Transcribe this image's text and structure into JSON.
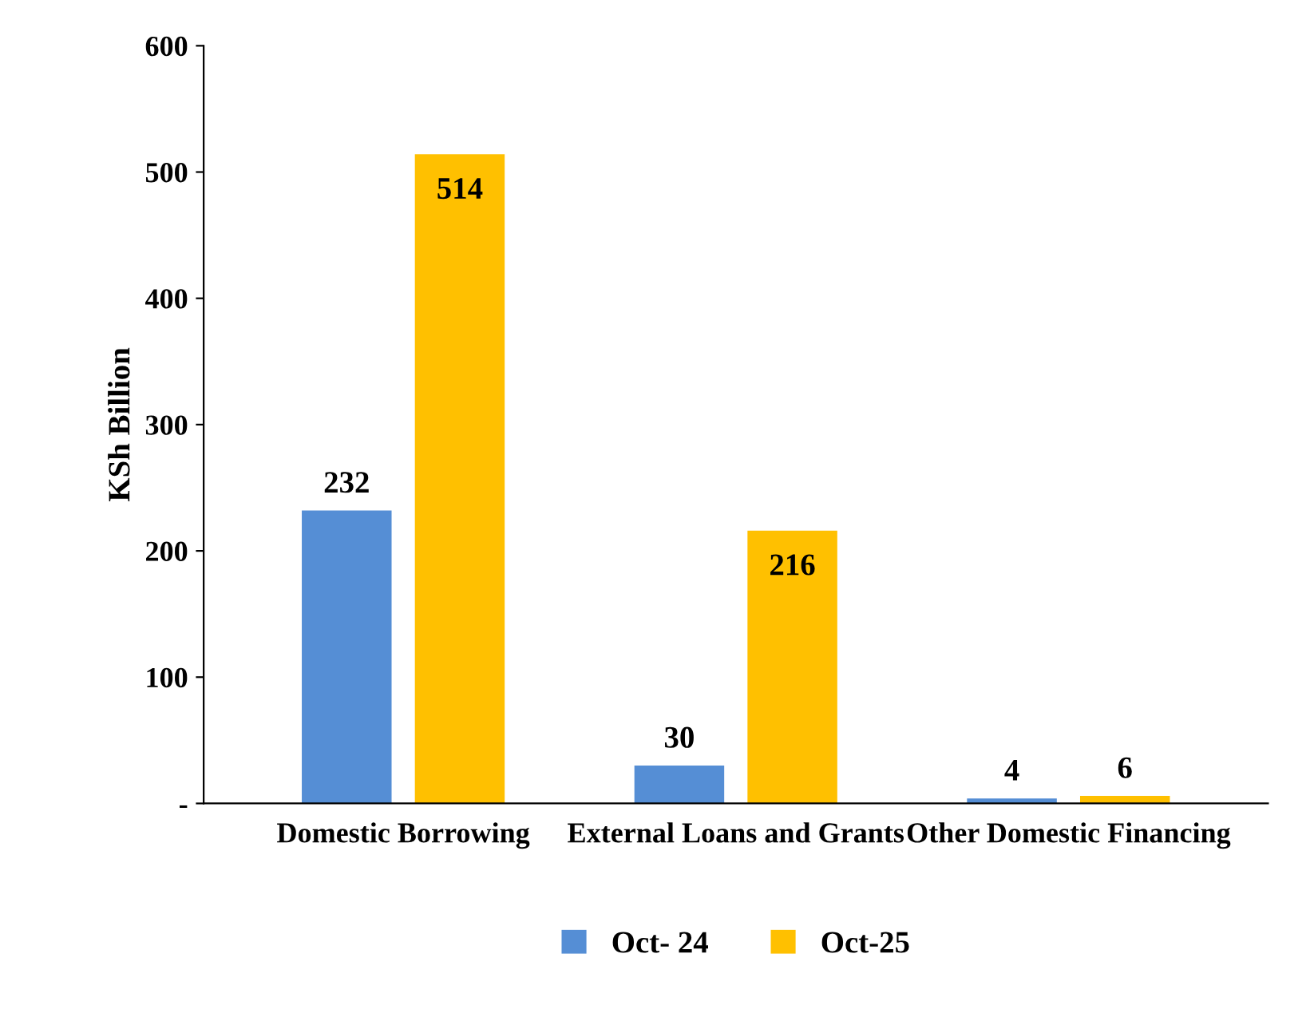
{
  "chart_data": {
    "type": "bar",
    "ylabel": "KSh Billion",
    "categories": [
      "Domestic Borrowing",
      "External Loans and Grants",
      "Other Domestic Financing"
    ],
    "series": [
      {
        "name": "Oct- 24",
        "color": "#558ed5",
        "values": [
          232,
          30,
          4
        ]
      },
      {
        "name": "Oct-25",
        "color": "#ffc000",
        "values": [
          514,
          216,
          6
        ]
      }
    ],
    "ylim": [
      0,
      600
    ],
    "yticks": [
      {
        "value": 0,
        "label": "-"
      },
      100,
      200,
      300,
      400,
      500,
      600
    ],
    "data_labels": true,
    "grid": false,
    "legend": "bottom"
  }
}
